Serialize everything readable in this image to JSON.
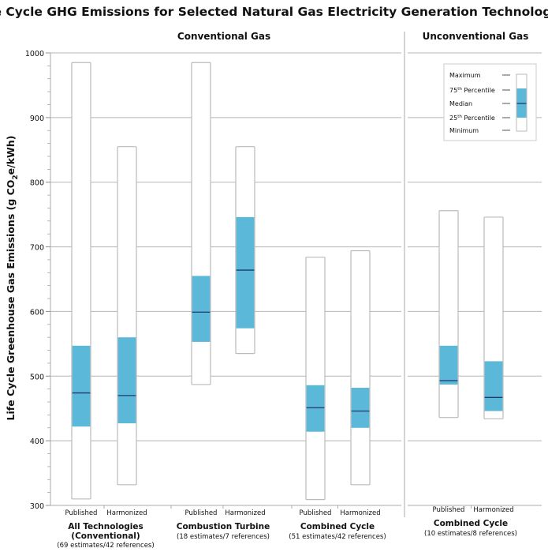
{
  "chart_data": {
    "type": "boxplot",
    "title": "Life Cycle GHG Emissions for Selected Natural Gas Electricity Generation Technologies",
    "ylabel": "Life Cycle Greenhouse Gas Emissions (g CO2e/kWh)",
    "ylabel_parts": {
      "before": "Life Cycle Greenhouse Gas Emissions (g CO",
      "sub": "2",
      "after": "e/kWh)"
    },
    "ylim": [
      300,
      1000
    ],
    "yticks": [
      300,
      400,
      500,
      600,
      700,
      800,
      900,
      1000
    ],
    "grid": true,
    "panels": [
      {
        "title": "Conventional Gas"
      },
      {
        "title": "Unconventional Gas"
      }
    ],
    "groups": [
      {
        "name": "All Technologies",
        "name2": "(Conventional)",
        "note": "(69 estimates/42 references)",
        "panel": 0,
        "boxes": [
          {
            "label": "Published",
            "min": 310,
            "q1": 422,
            "median": 474,
            "q3": 547,
            "max": 985
          },
          {
            "label": "Harmonized",
            "min": 332,
            "q1": 427,
            "median": 470,
            "q3": 560,
            "max": 855
          }
        ]
      },
      {
        "name": "Combustion Turbine",
        "name2": "",
        "note": "(18 estimates/7 references)",
        "panel": 0,
        "boxes": [
          {
            "label": "Published",
            "min": 487,
            "q1": 553,
            "median": 599,
            "q3": 655,
            "max": 985
          },
          {
            "label": "Harmonized",
            "min": 535,
            "q1": 574,
            "median": 664,
            "q3": 746,
            "max": 855
          }
        ]
      },
      {
        "name": "Combined Cycle",
        "name2": "",
        "note": "(51 estimates/42 references)",
        "panel": 0,
        "boxes": [
          {
            "label": "Published",
            "min": 309,
            "q1": 414,
            "median": 451,
            "q3": 486,
            "max": 684
          },
          {
            "label": "Harmonized",
            "min": 332,
            "q1": 420,
            "median": 446,
            "q3": 482,
            "max": 694
          }
        ]
      },
      {
        "name": "Combined Cycle",
        "name2": "",
        "note": "(10 estimates/8 references)",
        "panel": 1,
        "boxes": [
          {
            "label": "Published",
            "min": 436,
            "q1": 487,
            "median": 493,
            "q3": 547,
            "max": 756
          },
          {
            "label": "Harmonized",
            "min": 434,
            "q1": 446,
            "median": 467,
            "q3": 523,
            "max": 746
          }
        ]
      }
    ],
    "legend": {
      "placement": "top-right",
      "items": [
        {
          "label": "Maximum",
          "sup": ""
        },
        {
          "label": "75",
          "sup": "th",
          "rest": " Percentile"
        },
        {
          "label": "Median",
          "sup": ""
        },
        {
          "label": "25",
          "sup": "th",
          "rest": " Percentile"
        },
        {
          "label": "Minimum",
          "sup": ""
        }
      ]
    },
    "colors": {
      "iqr": "#5bb8d9",
      "median": "#1f3a6b",
      "box_border": "#bbbbbb",
      "grid": "#b5b5b5"
    }
  }
}
